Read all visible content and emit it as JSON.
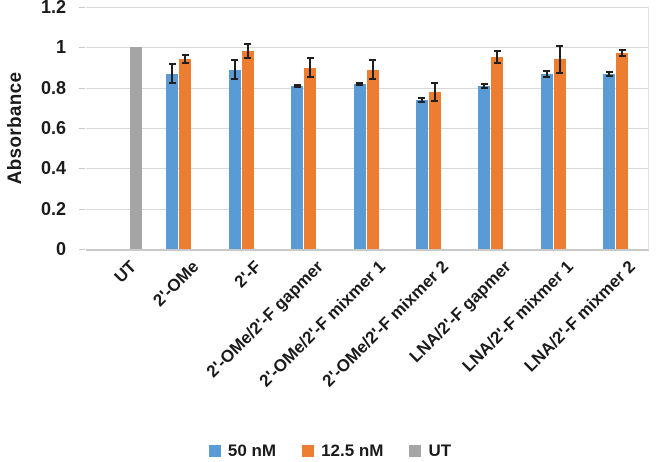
{
  "chart_data": {
    "type": "bar",
    "title": "",
    "xlabel": "",
    "ylabel": "Absorbance",
    "ylim": [
      0,
      1.2
    ],
    "ytick_values": [
      0,
      0.2,
      0.4,
      0.6,
      0.8,
      1,
      1.2
    ],
    "ytick_labels": [
      "0",
      "0.2",
      "0.4",
      "0.6",
      "0.8",
      "1",
      "1.2"
    ],
    "grid": true,
    "legend_position": "bottom",
    "categories": [
      "UT",
      "2'-OMe",
      "2'-F",
      "2'-OMe/2'-F gapmer",
      "2'-OMe/2'-F mixmer 1",
      "2'-OMe/2'-F mixmer 2",
      "LNA/2'-F gapmer",
      "LNA/2'-F mixmer 1",
      "LNA/2'-F mixmer 2"
    ],
    "series": [
      {
        "name": "50 nM",
        "color": "#5B9BD5",
        "values": [
          null,
          0.87,
          0.89,
          0.81,
          0.82,
          0.74,
          0.81,
          0.87,
          0.87
        ],
        "errors": [
          null,
          0.05,
          0.05,
          0.01,
          0.01,
          0.015,
          0.015,
          0.02,
          0.015
        ]
      },
      {
        "name": "12.5 nM",
        "color": "#ED7D31",
        "values": [
          null,
          0.94,
          0.98,
          0.9,
          0.89,
          0.78,
          0.95,
          0.94,
          0.97
        ],
        "errors": [
          null,
          0.025,
          0.04,
          0.05,
          0.05,
          0.05,
          0.035,
          0.07,
          0.02
        ]
      },
      {
        "name": "UT",
        "color": "#A5A5A5",
        "values": [
          1.0,
          null,
          null,
          null,
          null,
          null,
          null,
          null,
          null
        ],
        "errors": [
          null,
          null,
          null,
          null,
          null,
          null,
          null,
          null,
          null
        ]
      }
    ],
    "colors": {
      "gridline": "#d9d9d9",
      "axis_line": "#c9c9c9",
      "error_bar": "#1f1f1f",
      "text": "#1a1a1a"
    }
  }
}
